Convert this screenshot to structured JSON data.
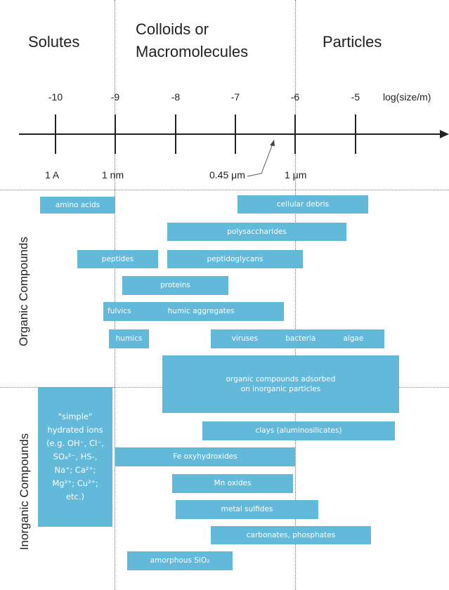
{
  "headers": {
    "solutes": "Solutes",
    "colloids_line1": "Colloids or",
    "colloids_line2": "Macromolecules",
    "particles": "Particles"
  },
  "axis": {
    "label": "log(size/m)",
    "ticks": [
      "-10",
      "-9",
      "-8",
      "-7",
      "-6",
      "-5"
    ],
    "size_labels": {
      "one_angstrom": "1 A",
      "one_nm": "1 nm",
      "filter": "0.45 μm",
      "one_um": "1 μm"
    }
  },
  "categories": {
    "organic": "Organic Compounds",
    "inorganic": "Inorganic Compounds"
  },
  "organic_bars": {
    "amino_acids": "amino acids",
    "cellular_debris": "cellular debris",
    "polysaccharides": "polysaccharides",
    "peptides": "peptides",
    "peptidoglycans": "peptidoglycans",
    "proteins": "proteins",
    "fulvics": "fulvics",
    "humic_aggregates": "humic aggregates",
    "humics": "humics",
    "viruses": "viruses",
    "bacteria": "bacteria",
    "algae": "algae",
    "adsorbed_line1": "organic compounds adsorbed",
    "adsorbed_line2": "on inorganic particles"
  },
  "inorganic_bars": {
    "ions": [
      "\"simple\"",
      "hydrated ions",
      "(e.g. OH⁻, Cl⁻,",
      "SO₄²⁻, HS-,",
      "Na⁺; Ca²⁺;",
      "Mg²⁺; Cu²⁺;",
      "etc.)"
    ],
    "clays": "clays (aluminosilicates)",
    "fe_oxyhydroxides": "Fe oxyhydroxides",
    "mn_oxides": "Mn oxides",
    "metal_sulfides": "metal sulfides",
    "carbonates": "carbonates, phosphates",
    "amorphous_sio2": "amorphous SiO₂"
  },
  "colors": {
    "bar": "#62b9da",
    "bar_text": "#ffffff",
    "axis": "#222222",
    "guide": "#6b6b6b"
  }
}
